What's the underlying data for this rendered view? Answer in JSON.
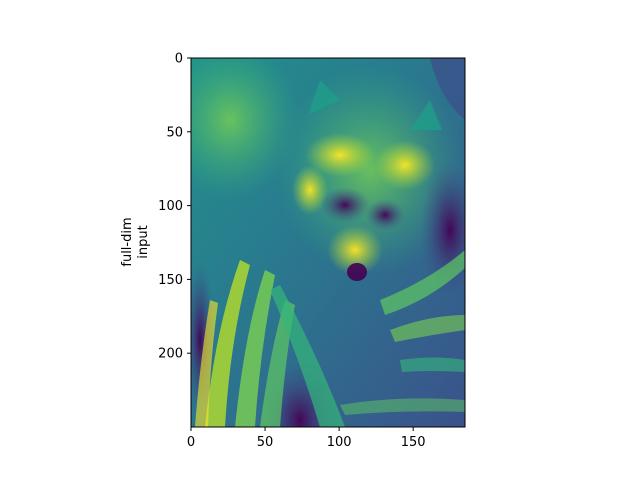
{
  "chart_data": {
    "type": "heatmap",
    "image_subject": "grayscale raccoon face photo",
    "colormap": "viridis",
    "ylabel_lines": [
      "full-dim",
      "input"
    ],
    "xlim": [
      0,
      185
    ],
    "ylim": [
      0,
      250
    ],
    "y_inverted": true,
    "x_ticks": [
      0,
      50,
      100,
      150
    ],
    "x_tick_labels": [
      "0",
      "50",
      "100",
      "150"
    ],
    "y_ticks": [
      0,
      50,
      100,
      150,
      200
    ],
    "y_tick_labels": [
      "0",
      "50",
      "100",
      "150",
      "200"
    ],
    "grid": false,
    "legend": "none"
  }
}
